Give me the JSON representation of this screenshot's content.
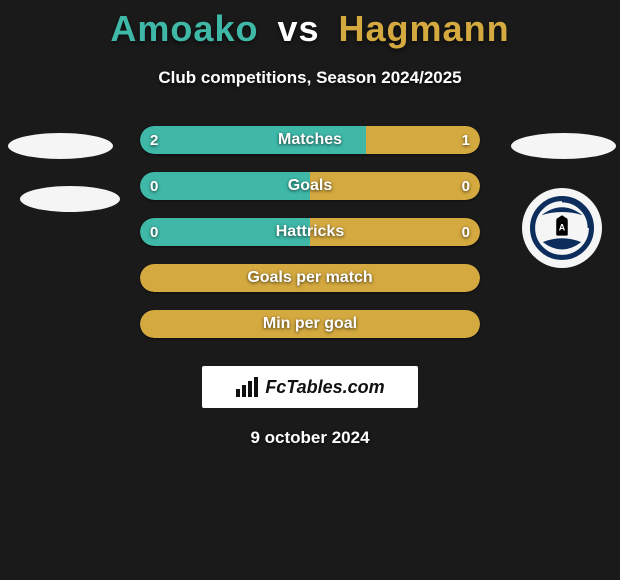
{
  "title_left": "Amoako",
  "title_vs": "vs",
  "title_right": "Hagmann",
  "title_color_left": "#3fb8a8",
  "title_color_vs": "#ffffff",
  "title_color_right": "#d4a93f",
  "subtitle": "Club competitions, Season 2024/2025",
  "bars": [
    {
      "label": "Matches",
      "left": "2",
      "right": "1",
      "left_pct": 66.6,
      "right_pct": 33.4,
      "left_color": "#3fb8a8",
      "right_color": "#d4a93f"
    },
    {
      "label": "Goals",
      "left": "0",
      "right": "0",
      "left_pct": 50,
      "right_pct": 50,
      "left_color": "#3fb8a8",
      "right_color": "#d4a93f"
    },
    {
      "label": "Hattricks",
      "left": "0",
      "right": "0",
      "left_pct": 50,
      "right_pct": 50,
      "left_color": "#3fb8a8",
      "right_color": "#d4a93f"
    },
    {
      "label": "Goals per match",
      "left": "",
      "right": "",
      "full_color": "#d4a93f"
    },
    {
      "label": "Min per goal",
      "left": "",
      "right": "",
      "full_color": "#d4a93f"
    }
  ],
  "logo_text": "FcTables.com",
  "date": "9 october 2024",
  "club_logo": {
    "outer_ring": "#0d2d5c",
    "field": "#ffffff",
    "flag": "#000000"
  }
}
